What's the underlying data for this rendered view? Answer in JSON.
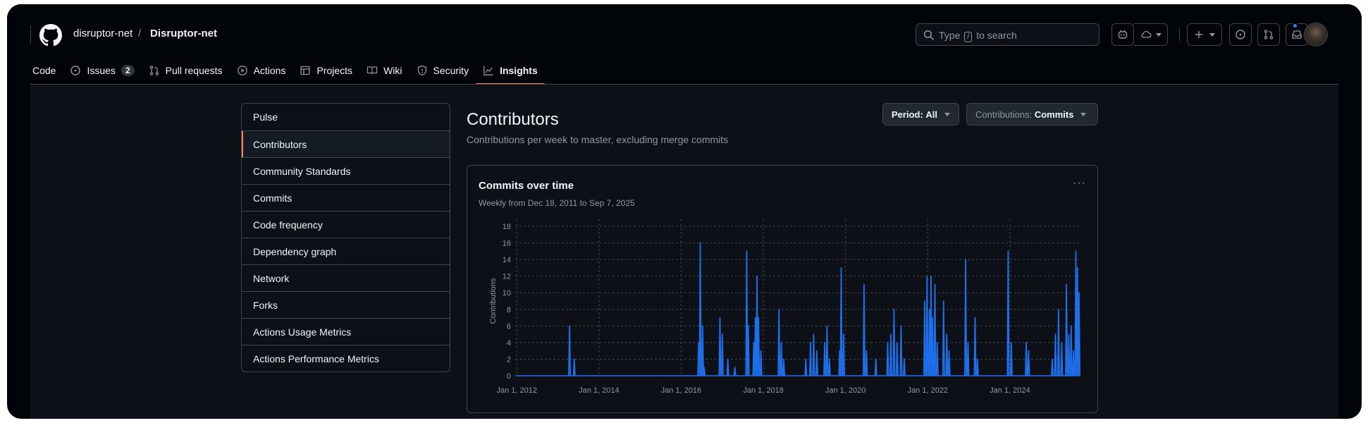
{
  "header": {
    "owner": "disruptor-net",
    "separator": "/",
    "repo": "Disruptor-net",
    "search_prefix": "Type",
    "search_key": "/",
    "search_suffix": "to search"
  },
  "tabs": [
    {
      "label": "Code"
    },
    {
      "label": "Issues",
      "count": "2"
    },
    {
      "label": "Pull requests"
    },
    {
      "label": "Actions"
    },
    {
      "label": "Projects"
    },
    {
      "label": "Wiki"
    },
    {
      "label": "Security"
    },
    {
      "label": "Insights"
    }
  ],
  "sidebar": {
    "items": [
      {
        "label": "Pulse"
      },
      {
        "label": "Contributors"
      },
      {
        "label": "Community Standards"
      },
      {
        "label": "Commits"
      },
      {
        "label": "Code frequency"
      },
      {
        "label": "Dependency graph"
      },
      {
        "label": "Network"
      },
      {
        "label": "Forks"
      },
      {
        "label": "Actions Usage Metrics"
      },
      {
        "label": "Actions Performance Metrics"
      }
    ]
  },
  "page": {
    "title": "Contributors",
    "subtitle": "Contributions per week to master, excluding merge commits",
    "period_label": "Period:",
    "period_value": "All",
    "contrib_label": "Contributions:",
    "contrib_value": "Commits"
  },
  "card": {
    "title": "Commits over time",
    "subtitle": "Weekly from Dec 18, 2011 to Sep 7, 2025",
    "menu": "···"
  },
  "chart_data": {
    "type": "area",
    "ylabel": "Contributions",
    "ylim": [
      0,
      18
    ],
    "yticks": [
      0,
      2,
      4,
      6,
      8,
      10,
      12,
      14,
      16,
      18
    ],
    "xlim": [
      "2011-12-18",
      "2025-09-07"
    ],
    "xticks": [
      {
        "date": "2012-01-01",
        "label": "Jan 1, 2012"
      },
      {
        "date": "2014-01-01",
        "label": "Jan 1, 2014"
      },
      {
        "date": "2016-01-01",
        "label": "Jan 1, 2016"
      },
      {
        "date": "2018-01-01",
        "label": "Jan 1, 2018"
      },
      {
        "date": "2020-01-01",
        "label": "Jan 1, 2020"
      },
      {
        "date": "2022-01-01",
        "label": "Jan 1, 2022"
      },
      {
        "date": "2024-01-01",
        "label": "Jan 1, 2024"
      }
    ],
    "grid": true,
    "color": "#1f6feb",
    "points": [
      [
        "2013-04-14",
        6
      ],
      [
        "2013-05-26",
        2
      ],
      [
        "2016-06-05",
        4
      ],
      [
        "2016-06-19",
        16
      ],
      [
        "2016-07-10",
        6
      ],
      [
        "2016-07-24",
        1
      ],
      [
        "2016-12-11",
        7
      ],
      [
        "2017-01-01",
        5
      ],
      [
        "2017-02-19",
        2
      ],
      [
        "2017-04-23",
        1
      ],
      [
        "2017-08-06",
        15
      ],
      [
        "2017-08-20",
        6
      ],
      [
        "2017-10-08",
        4
      ],
      [
        "2017-10-22",
        7
      ],
      [
        "2017-11-05",
        12
      ],
      [
        "2017-11-19",
        7
      ],
      [
        "2017-12-10",
        3
      ],
      [
        "2018-05-20",
        8
      ],
      [
        "2018-06-10",
        4
      ],
      [
        "2018-07-01",
        2
      ],
      [
        "2019-01-13",
        2
      ],
      [
        "2019-02-24",
        4
      ],
      [
        "2019-03-24",
        5
      ],
      [
        "2019-04-21",
        3
      ],
      [
        "2019-06-30",
        4
      ],
      [
        "2019-07-21",
        6
      ],
      [
        "2019-08-11",
        2
      ],
      [
        "2019-11-10",
        3
      ],
      [
        "2019-11-24",
        13
      ],
      [
        "2019-12-15",
        5
      ],
      [
        "2020-06-14",
        11
      ],
      [
        "2020-07-05",
        3
      ],
      [
        "2020-09-27",
        2
      ],
      [
        "2021-01-10",
        4
      ],
      [
        "2021-02-07",
        5
      ],
      [
        "2021-03-07",
        8
      ],
      [
        "2021-04-04",
        4
      ],
      [
        "2021-05-09",
        6
      ],
      [
        "2021-06-06",
        2
      ],
      [
        "2021-12-05",
        9
      ],
      [
        "2021-12-26",
        12
      ],
      [
        "2022-01-16",
        8
      ],
      [
        "2022-01-30",
        12
      ],
      [
        "2022-02-13",
        7
      ],
      [
        "2022-03-06",
        11
      ],
      [
        "2022-03-27",
        4
      ],
      [
        "2022-05-22",
        9
      ],
      [
        "2022-06-19",
        5
      ],
      [
        "2022-07-10",
        3
      ],
      [
        "2022-12-04",
        14
      ],
      [
        "2022-12-25",
        4
      ],
      [
        "2023-02-26",
        7
      ],
      [
        "2023-03-19",
        2
      ],
      [
        "2023-12-17",
        15
      ],
      [
        "2024-01-14",
        4
      ],
      [
        "2024-05-26",
        4
      ],
      [
        "2024-06-16",
        3
      ],
      [
        "2025-01-12",
        2
      ],
      [
        "2025-02-09",
        5
      ],
      [
        "2025-03-09",
        8
      ],
      [
        "2025-04-06",
        4
      ],
      [
        "2025-05-18",
        11
      ],
      [
        "2025-06-08",
        5
      ],
      [
        "2025-06-29",
        6
      ],
      [
        "2025-07-20",
        3
      ],
      [
        "2025-08-10",
        15
      ],
      [
        "2025-08-24",
        13
      ],
      [
        "2025-09-07",
        10
      ]
    ]
  }
}
